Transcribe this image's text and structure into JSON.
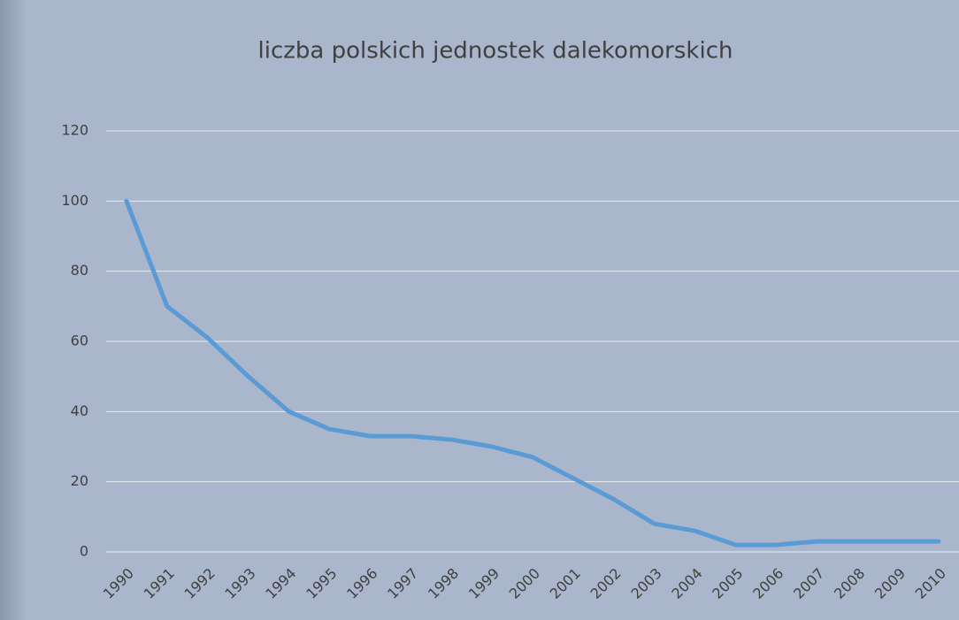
{
  "chart_data": {
    "type": "line",
    "title": "liczba polskich jednostek dalekomorskich",
    "categories": [
      "1990",
      "1991",
      "1992",
      "1993",
      "1994",
      "1995",
      "1996",
      "1997",
      "1998",
      "1999",
      "2000",
      "2001",
      "2002",
      "2003",
      "2004",
      "2005",
      "2006",
      "2007",
      "2008",
      "2009",
      "2010"
    ],
    "values": [
      100,
      70,
      61,
      50,
      40,
      35,
      33,
      33,
      32,
      30,
      27,
      21,
      15,
      8,
      6,
      2,
      2,
      3,
      3,
      3,
      3
    ],
    "color": "#5b9bd5",
    "ylim": [
      0,
      120
    ],
    "yticks": [
      0,
      20,
      40,
      60,
      80,
      100,
      120
    ],
    "grid": true
  }
}
